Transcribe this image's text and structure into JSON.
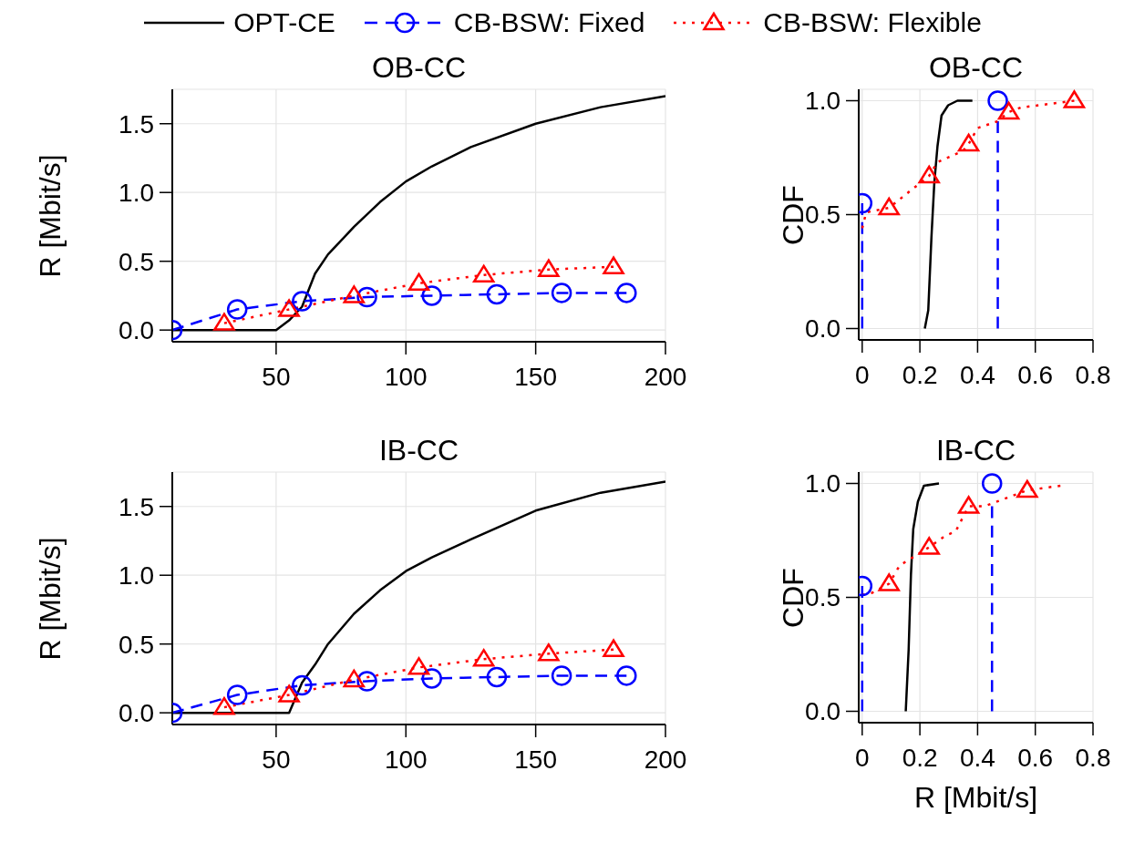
{
  "chart_data": [
    {
      "type": "line",
      "title": "OB-CC",
      "ylabel": "R [Mbit/s]",
      "xlim": [
        10,
        200
      ],
      "xticks": [
        50,
        100,
        150,
        200
      ],
      "ylim": [
        -0.085,
        1.75
      ],
      "yticks": [
        {
          "value": 0,
          "label": "0.0"
        },
        {
          "value": 0.5,
          "label": "0.5"
        },
        {
          "value": 1,
          "label": "1.0"
        },
        {
          "value": 1.5,
          "label": "1.5"
        }
      ],
      "grid": true,
      "legend": "top",
      "series": [
        {
          "name": "OPT-CE",
          "color": "#000000",
          "line_style": "solid",
          "marker": "none",
          "x": [
            10,
            50,
            55,
            60,
            65,
            70,
            80,
            90,
            100,
            110,
            125,
            150,
            175,
            200
          ],
          "values": [
            0,
            0,
            0.07,
            0.17,
            0.41,
            0.55,
            0.75,
            0.93,
            1.08,
            1.19,
            1.33,
            1.5,
            1.62,
            1.7
          ]
        },
        {
          "name": "CB-BSW: Fixed",
          "color": "#0000ff",
          "line_style": "dashed",
          "marker": "circle",
          "x": [
            10,
            35,
            60,
            85,
            110,
            135,
            160,
            185
          ],
          "values": [
            0,
            0.15,
            0.21,
            0.24,
            0.25,
            0.26,
            0.27,
            0.27
          ]
        },
        {
          "name": "CB-BSW: Flexible",
          "color": "#ff0000",
          "line_style": "dotted",
          "marker": "triangle",
          "x": [
            30,
            55,
            80,
            105,
            130,
            155,
            180
          ],
          "values": [
            0.05,
            0.15,
            0.25,
            0.34,
            0.4,
            0.44,
            0.46
          ]
        }
      ]
    },
    {
      "type": "line",
      "title": "OB-CC",
      "ylabel": "CDF",
      "xlim": [
        -0.012,
        0.8
      ],
      "xticks": [
        0,
        0.2,
        0.4,
        0.6,
        0.8
      ],
      "ylim": [
        -0.05,
        1.05
      ],
      "yticks": [
        {
          "value": 0,
          "label": "0.0"
        },
        {
          "value": 0.5,
          "label": "0.5"
        },
        {
          "value": 1,
          "label": "1.0"
        }
      ],
      "grid": true,
      "series": [
        {
          "color": "#000000",
          "line_style": "solid",
          "marker": "none",
          "x": [
            0.217,
            0.229,
            0.24,
            0.25,
            0.261,
            0.275,
            0.298,
            0.33,
            0.382
          ],
          "values": [
            0,
            0.08,
            0.4,
            0.64,
            0.8,
            0.935,
            0.98,
            1,
            1
          ]
        },
        {
          "color": "#0000ff",
          "line_style": "dashed",
          "marker": "none",
          "x": [
            0,
            0
          ],
          "values": [
            0,
            0.55
          ]
        },
        {
          "color": "#0000ff",
          "line_style": "dashed",
          "marker": "none",
          "x": [
            0.47,
            0.47
          ],
          "values": [
            0,
            0.91
          ]
        },
        {
          "type": "scatter",
          "color": "#0000ff",
          "marker": "circle",
          "x": [
            0,
            0.47
          ],
          "values": [
            0.55,
            1
          ]
        },
        {
          "color": "#ff0000",
          "line_style": "dotted",
          "marker": "none",
          "x": [
            0,
            0.014,
            0.093,
            0.232,
            0.261,
            0.35,
            0.369,
            0.4,
            0.47,
            0.508,
            0.55,
            0.735
          ],
          "values": [
            0.44,
            0.51,
            0.53,
            0.67,
            0.73,
            0.78,
            0.81,
            0.88,
            0.91,
            0.95,
            0.97,
            1
          ]
        },
        {
          "type": "scatter",
          "color": "#ff0000",
          "marker": "triangle",
          "x": [
            0.093,
            0.232,
            0.369,
            0.508,
            0.735
          ],
          "values": [
            0.53,
            0.67,
            0.81,
            0.95,
            1
          ]
        }
      ]
    },
    {
      "type": "line",
      "title": "IB-CC",
      "ylabel": "R [Mbit/s]",
      "xlim": [
        10,
        200
      ],
      "xticks": [
        50,
        100,
        150,
        200
      ],
      "ylim": [
        -0.085,
        1.75
      ],
      "yticks": [
        {
          "value": 0,
          "label": "0.0"
        },
        {
          "value": 0.5,
          "label": "0.5"
        },
        {
          "value": 1,
          "label": "1.0"
        },
        {
          "value": 1.5,
          "label": "1.5"
        }
      ],
      "grid": true,
      "series": [
        {
          "color": "#000000",
          "line_style": "solid",
          "marker": "none",
          "x": [
            10,
            55,
            60,
            65,
            70,
            80,
            90,
            100,
            110,
            125,
            150,
            175,
            200
          ],
          "values": [
            0,
            0,
            0.22,
            0.35,
            0.5,
            0.72,
            0.89,
            1.03,
            1.13,
            1.26,
            1.47,
            1.6,
            1.68
          ]
        },
        {
          "color": "#0000ff",
          "line_style": "dashed",
          "marker": "circle",
          "x": [
            10,
            35,
            60,
            85,
            110,
            135,
            160,
            185
          ],
          "values": [
            0,
            0.13,
            0.2,
            0.23,
            0.25,
            0.26,
            0.27,
            0.27
          ]
        },
        {
          "color": "#ff0000",
          "line_style": "dotted",
          "marker": "triangle",
          "x": [
            30,
            55,
            80,
            105,
            130,
            155,
            180
          ],
          "values": [
            0.04,
            0.13,
            0.24,
            0.33,
            0.39,
            0.43,
            0.46
          ]
        }
      ]
    },
    {
      "type": "line",
      "title": "IB-CC",
      "ylabel": "CDF",
      "xlabel": "R [Mbit/s]",
      "xlim": [
        -0.012,
        0.8
      ],
      "xticks": [
        0,
        0.2,
        0.4,
        0.6,
        0.8
      ],
      "ylim": [
        -0.05,
        1.05
      ],
      "yticks": [
        {
          "value": 0,
          "label": "0.0"
        },
        {
          "value": 0.5,
          "label": "0.5"
        },
        {
          "value": 1,
          "label": "1.0"
        }
      ],
      "grid": true,
      "series": [
        {
          "color": "#000000",
          "line_style": "solid",
          "marker": "none",
          "x": [
            0.151,
            0.161,
            0.169,
            0.177,
            0.193,
            0.214,
            0.266
          ],
          "values": [
            0,
            0.27,
            0.6,
            0.8,
            0.92,
            0.99,
            1
          ]
        },
        {
          "color": "#0000ff",
          "line_style": "dashed",
          "marker": "none",
          "x": [
            0,
            0
          ],
          "values": [
            0,
            0.55
          ]
        },
        {
          "color": "#0000ff",
          "line_style": "dashed",
          "marker": "none",
          "x": [
            0.45,
            0.45
          ],
          "values": [
            0,
            0.9
          ]
        },
        {
          "type": "scatter",
          "color": "#0000ff",
          "marker": "circle",
          "x": [
            0,
            0.45
          ],
          "values": [
            0.55,
            1
          ]
        },
        {
          "color": "#ff0000",
          "line_style": "dotted",
          "marker": "none",
          "x": [
            0,
            0.035,
            0.093,
            0.13,
            0.232,
            0.287,
            0.324,
            0.369,
            0.424,
            0.572,
            0.687
          ],
          "values": [
            0.51,
            0.52,
            0.56,
            0.64,
            0.72,
            0.77,
            0.79,
            0.9,
            0.9,
            0.97,
            0.99
          ]
        },
        {
          "type": "scatter",
          "color": "#ff0000",
          "marker": "triangle",
          "x": [
            0.093,
            0.232,
            0.369,
            0.572
          ],
          "values": [
            0.56,
            0.72,
            0.9,
            0.97
          ]
        }
      ]
    }
  ]
}
